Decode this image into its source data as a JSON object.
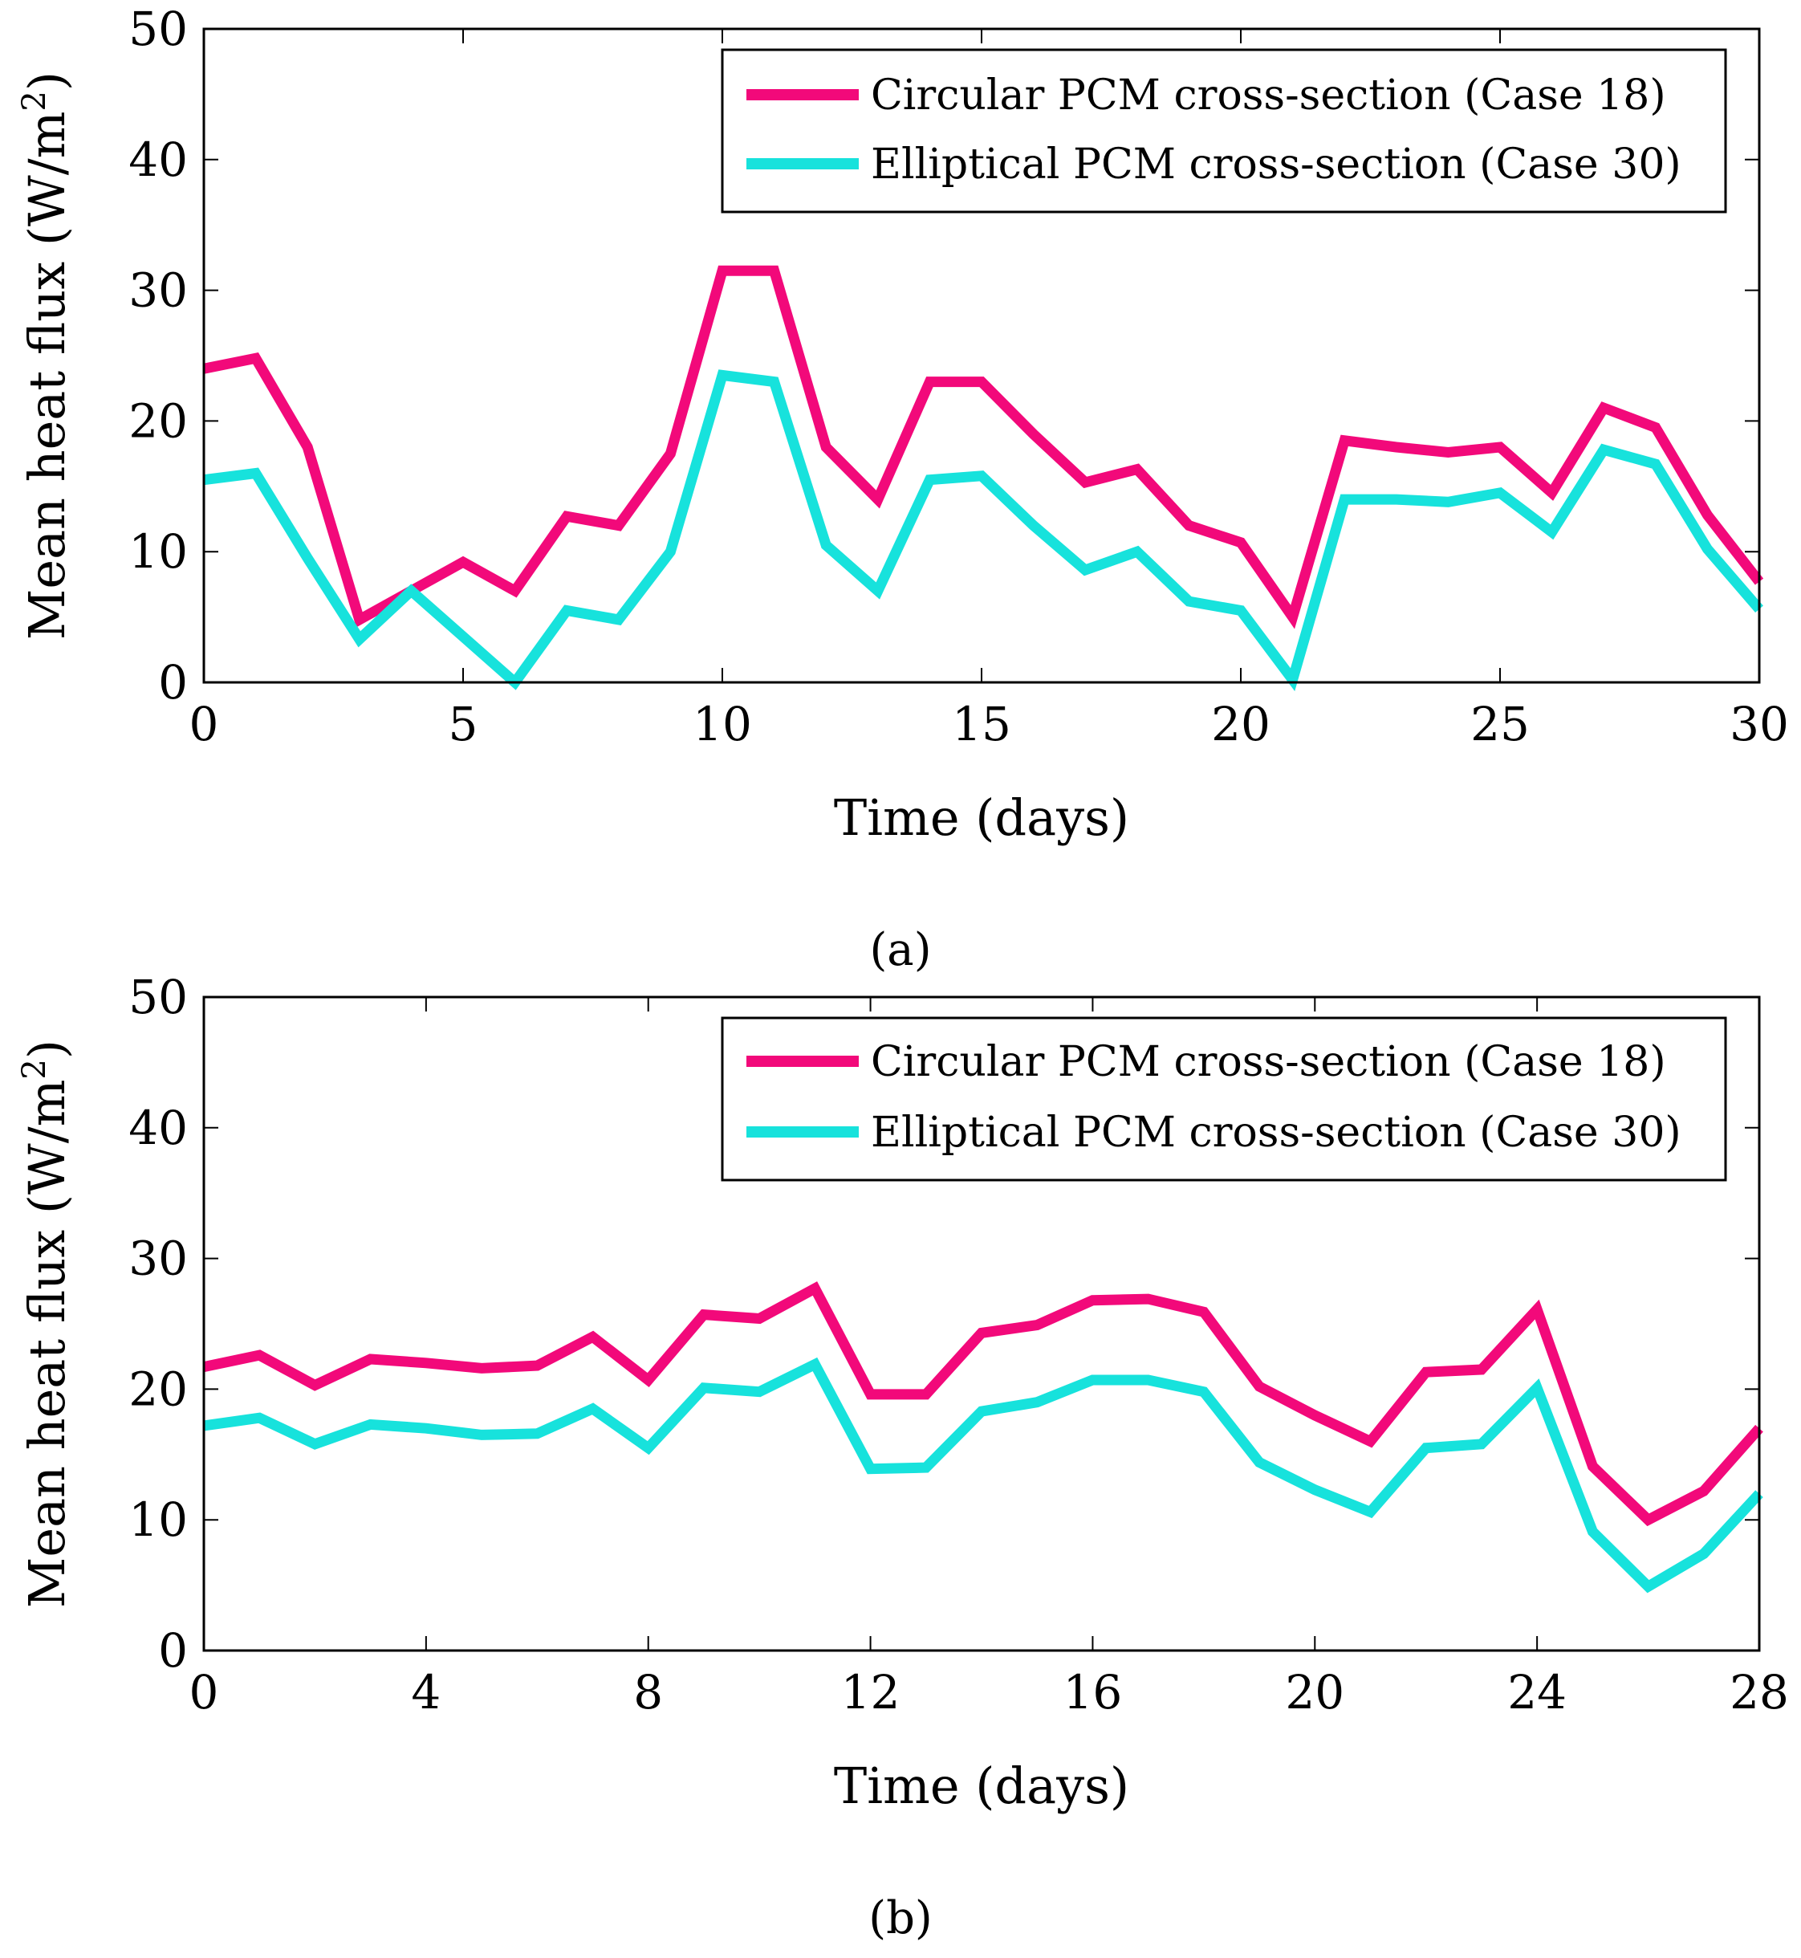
{
  "chart_data": [
    {
      "type": "line",
      "caption": "(a)",
      "xlabel": "Time (days)",
      "ylabel_prefix": "Mean heat flux (W/m",
      "ylabel_sup": "2",
      "ylabel_suffix": ")",
      "xlim": [
        0,
        30
      ],
      "ylim": [
        0,
        50
      ],
      "xticks": [
        0,
        5,
        10,
        15,
        20,
        25,
        30
      ],
      "yticks": [
        0,
        10,
        20,
        30,
        40,
        50
      ],
      "grid": false,
      "legend": "top-right",
      "x": [
        0,
        1,
        2,
        3,
        4,
        5,
        6,
        7,
        8,
        9,
        10,
        11,
        12,
        13,
        14,
        15,
        16,
        17,
        18,
        19,
        20,
        21,
        22,
        23,
        24,
        25,
        26,
        27,
        28,
        29,
        30
      ],
      "series": [
        {
          "name": "Circular PCM cross-section (Case 18)",
          "color": "#f2097a",
          "values": [
            24,
            24.8,
            18,
            4.8,
            7,
            9.2,
            7,
            12.7,
            12,
            17.5,
            31.5,
            31.5,
            18,
            14,
            23,
            23,
            19,
            15.3,
            16.3,
            12,
            10.7,
            5,
            18.5,
            18,
            17.6,
            18,
            14.5,
            21,
            19.5,
            12.8,
            7.7
          ]
        },
        {
          "name": "Elliptical PCM cross-section (Case 30)",
          "color": "#17e2dc",
          "values": [
            15.5,
            16,
            9.5,
            3.3,
            7,
            3.5,
            0,
            5.5,
            4.8,
            10,
            23.5,
            23,
            10.5,
            7,
            15.5,
            15.8,
            12,
            8.6,
            10,
            6.2,
            5.5,
            0.2,
            14,
            14,
            13.8,
            14.5,
            11.5,
            17.8,
            16.7,
            10.2,
            5.6
          ]
        }
      ]
    },
    {
      "type": "line",
      "caption": "(b)",
      "xlabel": "Time (days)",
      "ylabel_prefix": "Mean heat flux (W/m",
      "ylabel_sup": "2",
      "ylabel_suffix": ")",
      "xlim": [
        0,
        28
      ],
      "ylim": [
        0,
        50
      ],
      "xticks": [
        0,
        4,
        8,
        12,
        16,
        20,
        24,
        28
      ],
      "yticks": [
        0,
        10,
        20,
        30,
        40,
        50
      ],
      "grid": false,
      "legend": "top-right",
      "x": [
        0,
        1,
        2,
        3,
        4,
        5,
        6,
        7,
        8,
        9,
        10,
        11,
        12,
        13,
        14,
        15,
        16,
        17,
        18,
        19,
        20,
        21,
        22,
        23,
        24,
        25,
        26,
        27,
        28
      ],
      "series": [
        {
          "name": "Circular PCM cross-section (Case 18)",
          "color": "#f2097a",
          "values": [
            21.7,
            22.6,
            20.3,
            22.3,
            22,
            21.6,
            21.8,
            24,
            20.7,
            25.7,
            25.4,
            27.7,
            19.6,
            19.6,
            24.3,
            24.9,
            26.8,
            26.9,
            25.9,
            20.2,
            18,
            16,
            21.3,
            21.5,
            26.1,
            14.1,
            10,
            12.2,
            17
          ]
        },
        {
          "name": "Elliptical PCM cross-section (Case 30)",
          "color": "#17e2dc",
          "values": [
            17.2,
            17.8,
            15.8,
            17.3,
            17,
            16.5,
            16.6,
            18.5,
            15.5,
            20.1,
            19.8,
            21.9,
            13.9,
            14,
            18.3,
            19,
            20.7,
            20.7,
            19.8,
            14.4,
            12.3,
            10.6,
            15.5,
            15.8,
            20.1,
            9.1,
            4.9,
            7.4,
            12
          ]
        }
      ]
    }
  ]
}
